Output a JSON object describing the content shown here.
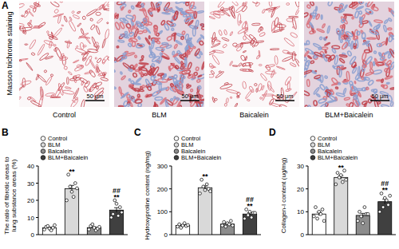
{
  "images": {
    "panel_label": "A",
    "ylabel": "Masson trichrome staining",
    "panels": [
      {
        "caption": "Control",
        "scale_bar": "50 μm"
      },
      {
        "caption": "BLM",
        "scale_bar": "50 μm"
      },
      {
        "caption": "Baicalein",
        "scale_bar": "50 μm"
      },
      {
        "caption": "BLM+Baicalein",
        "scale_bar": "50 μm"
      }
    ]
  },
  "chart_data": [
    {
      "type": "bar",
      "panel_label": "B",
      "ylabel": [
        "The ratio of fibrotic areas to",
        "lung substance areas (%)"
      ],
      "categories": [
        "Control",
        "BLM",
        "Baicalein",
        "BLM+Baicalein"
      ],
      "values": [
        4,
        26.7,
        4.1,
        14.3
      ],
      "errors": [
        0.4,
        2,
        0.4,
        1.4
      ],
      "points": [
        [
          3,
          4.5,
          5,
          3.5,
          2.5,
          4,
          5.5
        ],
        [
          20,
          35,
          28,
          25,
          22,
          30,
          27
        ],
        [
          3,
          5,
          6,
          4,
          2.5,
          3.5,
          4.5
        ],
        [
          10,
          12,
          20,
          18,
          11,
          16,
          13
        ]
      ],
      "colors": [
        "#ffffff",
        "#d9d9d9",
        "#8c8c8c",
        "#404040"
      ],
      "ylim": [
        0,
        40
      ],
      "yticks": [
        0,
        10,
        20,
        30,
        40
      ],
      "legend": "top-left",
      "tick_labels": "y",
      "annotations": [
        {
          "category": "BLM",
          "text": "**"
        },
        {
          "category": "BLM+Baicalein",
          "text": "**"
        },
        {
          "category": "BLM+Baicalein",
          "text": "##"
        }
      ]
    },
    {
      "type": "bar",
      "panel_label": "C",
      "ylabel": [
        "Hydroxyproline content (ng/mg)"
      ],
      "categories": [
        "Control",
        "BLM",
        "Baicalein",
        "BLM+Baicalein"
      ],
      "values": [
        40,
        205,
        46,
        90
      ],
      "errors": [
        3,
        8,
        3.5,
        5.5
      ],
      "points": [
        [
          35,
          45,
          30,
          40,
          50,
          38,
          42
        ],
        [
          180,
          240,
          210,
          195,
          220,
          200,
          190
        ],
        [
          40,
          55,
          35,
          50,
          45,
          60,
          40
        ],
        [
          70,
          110,
          85,
          100,
          75,
          95,
          95
        ]
      ],
      "colors": [
        "#ffffff",
        "#d9d9d9",
        "#8c8c8c",
        "#404040"
      ],
      "ylim": [
        0,
        300
      ],
      "yticks": [
        0,
        100,
        200,
        300
      ],
      "legend": "top-left",
      "tick_labels": "y",
      "annotations": [
        {
          "category": "BLM",
          "text": "**"
        },
        {
          "category": "BLM+Baicalein",
          "text": "**"
        },
        {
          "category": "BLM+Baicalein",
          "text": "##"
        }
      ]
    },
    {
      "type": "bar",
      "panel_label": "D",
      "ylabel": [
        "Collagen-I content (ug/mg)"
      ],
      "categories": [
        "Control",
        "BLM",
        "Baicalein",
        "BLM+Baicalein"
      ],
      "values": [
        9,
        25,
        8.4,
        14.4
      ],
      "errors": [
        0.8,
        0.8,
        0.9,
        1.1
      ],
      "points": [
        [
          8,
          12,
          7,
          10,
          9,
          11,
          6
        ],
        [
          22,
          27,
          25,
          26,
          23,
          28,
          24
        ],
        [
          6,
          10,
          8,
          5,
          12,
          9,
          9
        ],
        [
          10,
          18,
          12,
          16,
          15,
          13,
          17
        ]
      ],
      "colors": [
        "#ffffff",
        "#d9d9d9",
        "#8c8c8c",
        "#404040"
      ],
      "ylim": [
        0,
        30
      ],
      "yticks": [
        0,
        10,
        20,
        30
      ],
      "legend": "top-left",
      "tick_labels": "y",
      "annotations": [
        {
          "category": "BLM",
          "text": "**"
        },
        {
          "category": "BLM+Baicalein",
          "text": "**"
        },
        {
          "category": "BLM+Baicalein",
          "text": "##"
        }
      ]
    }
  ]
}
